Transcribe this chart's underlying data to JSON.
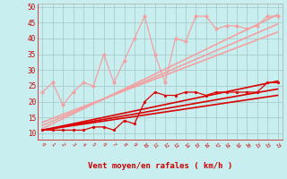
{
  "xlabel": "Vent moyen/en rafales ( km/h )",
  "background_color": "#c8eef0",
  "grid_color": "#aacccc",
  "xlim": [
    -0.5,
    23.5
  ],
  "ylim": [
    8,
    51
  ],
  "yticks": [
    10,
    15,
    20,
    25,
    30,
    35,
    40,
    45,
    50
  ],
  "xticks": [
    0,
    1,
    2,
    3,
    4,
    5,
    6,
    7,
    8,
    9,
    10,
    11,
    12,
    13,
    14,
    15,
    16,
    17,
    18,
    19,
    20,
    21,
    22,
    23
  ],
  "series": [
    {
      "x": [
        0,
        1,
        2,
        3,
        4,
        5,
        6,
        7,
        8,
        9,
        10,
        11,
        12,
        13,
        14,
        15,
        16,
        17,
        18,
        19,
        20,
        21,
        22,
        23
      ],
      "y": [
        23,
        26,
        19,
        23,
        26,
        25,
        35,
        26,
        33,
        40,
        47,
        35,
        26,
        40,
        39,
        47,
        47,
        43,
        44,
        44,
        43,
        44,
        47,
        47
      ],
      "color": "#f4a0a0",
      "marker": "o",
      "markersize": 2.5,
      "linewidth": 0.9,
      "zorder": 4
    },
    {
      "x": [
        0,
        1,
        2,
        3,
        4,
        5,
        6,
        7,
        8,
        9,
        10,
        11,
        12,
        13,
        14,
        15,
        16,
        17,
        18,
        19,
        20,
        21,
        22,
        23
      ],
      "y": [
        11,
        11,
        11,
        11,
        11,
        12,
        12,
        11,
        14,
        13,
        20,
        23,
        22,
        22,
        23,
        23,
        22,
        23,
        23,
        23,
        23,
        23,
        26,
        26
      ],
      "color": "#dd0000",
      "marker": "o",
      "markersize": 2.0,
      "linewidth": 0.9,
      "zorder": 5
    },
    {
      "x": [
        0,
        23
      ],
      "y": [
        11.5,
        47.5
      ],
      "color": "#f4a0a0",
      "linewidth": 1.2,
      "zorder": 2
    },
    {
      "x": [
        0,
        23
      ],
      "y": [
        12.5,
        44.5
      ],
      "color": "#f4a0a0",
      "linewidth": 1.2,
      "zorder": 2
    },
    {
      "x": [
        0,
        23
      ],
      "y": [
        13.5,
        42.0
      ],
      "color": "#f4a0a0",
      "linewidth": 1.2,
      "zorder": 2
    },
    {
      "x": [
        0,
        23
      ],
      "y": [
        11.0,
        26.5
      ],
      "color": "#dd0000",
      "linewidth": 1.2,
      "zorder": 3
    },
    {
      "x": [
        0,
        23
      ],
      "y": [
        11.0,
        24.0
      ],
      "color": "#dd0000",
      "linewidth": 1.2,
      "zorder": 3
    },
    {
      "x": [
        0,
        23
      ],
      "y": [
        11.0,
        22.0
      ],
      "color": "#dd0000",
      "linewidth": 1.2,
      "zorder": 3
    }
  ]
}
